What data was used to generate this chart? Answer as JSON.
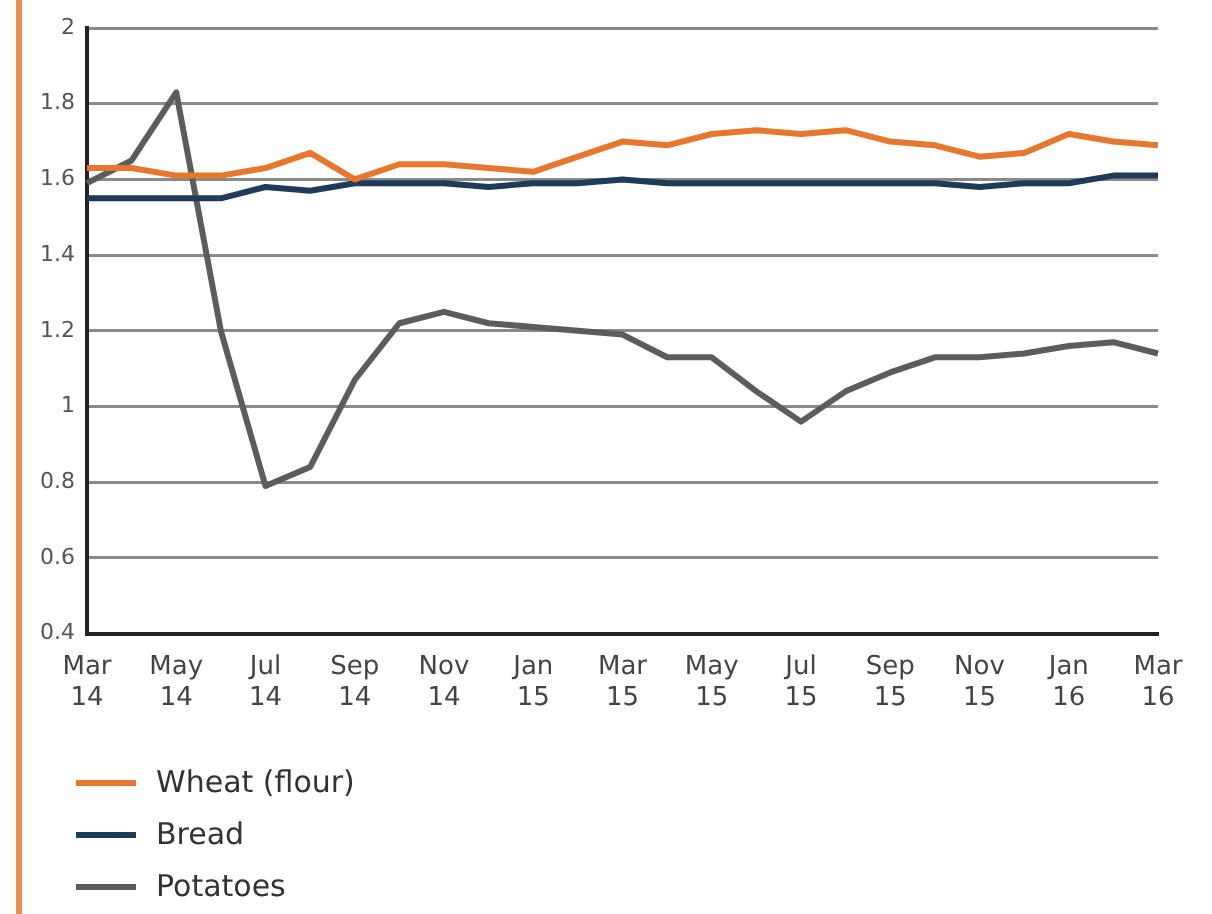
{
  "chart_data": {
    "type": "line",
    "categories": [
      "Mar 14",
      null,
      "May 14",
      null,
      "Jul 14",
      null,
      "Sep 14",
      null,
      "Nov 14",
      null,
      "Jan 15",
      null,
      "Mar 15",
      null,
      "May 15",
      null,
      "Jul 15",
      null,
      "Sep 15",
      null,
      "Nov 15",
      null,
      "Jan 16",
      null,
      "Mar 16"
    ],
    "series": [
      {
        "name": "Wheat (flour)",
        "color": "#e8772e",
        "values": [
          1.63,
          1.63,
          1.61,
          1.61,
          1.63,
          1.67,
          1.6,
          1.64,
          1.64,
          1.63,
          1.62,
          1.66,
          1.7,
          1.69,
          1.72,
          1.73,
          1.72,
          1.73,
          1.7,
          1.69,
          1.66,
          1.67,
          1.72,
          1.7,
          1.69
        ]
      },
      {
        "name": "Bread",
        "color": "#1f3b57",
        "values": [
          1.55,
          1.55,
          1.55,
          1.55,
          1.58,
          1.57,
          1.59,
          1.59,
          1.59,
          1.58,
          1.59,
          1.59,
          1.6,
          1.59,
          1.59,
          1.59,
          1.59,
          1.59,
          1.59,
          1.59,
          1.58,
          1.59,
          1.59,
          1.61,
          1.61
        ]
      },
      {
        "name": "Potatoes",
        "color": "#5a5c5e",
        "values": [
          1.59,
          1.65,
          1.83,
          1.2,
          0.79,
          0.84,
          1.07,
          1.22,
          1.25,
          1.22,
          1.21,
          1.2,
          1.19,
          1.13,
          1.13,
          1.04,
          0.96,
          1.04,
          1.09,
          1.13,
          1.13,
          1.14,
          1.16,
          1.17,
          1.14
        ]
      }
    ],
    "ylim": [
      0.4,
      2
    ],
    "yticks": [
      0.4,
      0.6,
      0.8,
      1,
      1.2,
      1.4,
      1.6,
      1.8,
      2
    ],
    "grid": "y",
    "legend": "bottom left",
    "marker": "none",
    "line_style": "solid"
  }
}
